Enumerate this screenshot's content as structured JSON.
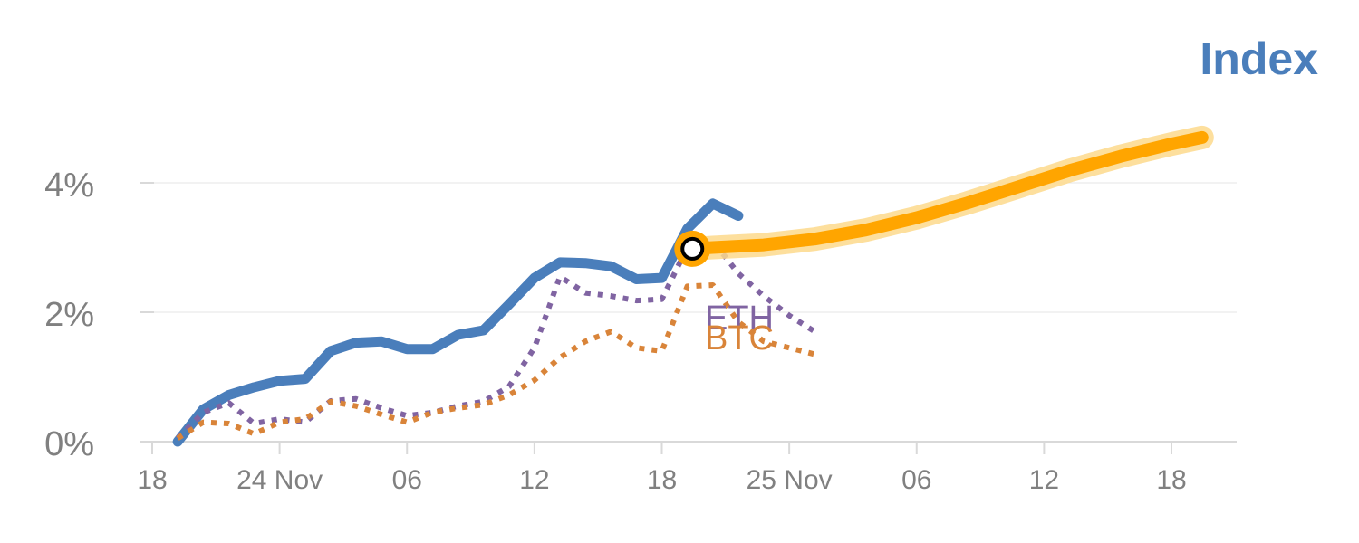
{
  "chart_data": {
    "type": "line",
    "title": "Index",
    "colors": {
      "index": "#4a7ebb",
      "forecast": "#ffa500",
      "forecast_glow": "#fdd98c",
      "eth": "#8064a2",
      "btc": "#d98439",
      "grid": "#e6e6e6",
      "axis": "#d9d9d9",
      "tick_text": "#808080",
      "marker_ring": "#ffa500",
      "marker_fill": "#ffffff",
      "marker_stroke": "#000000"
    },
    "y_axis": {
      "ticks": [
        0,
        2,
        4
      ],
      "tick_labels": [
        "0%",
        "2%",
        "4%"
      ],
      "ylim": [
        0,
        4
      ],
      "grid": true
    },
    "x_axis": {
      "xlim": [
        0,
        43
      ],
      "ticks": [
        0,
        5,
        10,
        15,
        20,
        25,
        30,
        35,
        40
      ],
      "tick_labels": [
        "18",
        "24 Nov",
        "06",
        "12",
        "18",
        "25 Nov",
        "06",
        "12",
        "18"
      ]
    },
    "series": [
      {
        "name": "Index",
        "role": "index",
        "style": "solid",
        "x": [
          1,
          2,
          3,
          4,
          5,
          6,
          7,
          8,
          9,
          10,
          11,
          12,
          13,
          14,
          15,
          16,
          17,
          18,
          19,
          20,
          21,
          22,
          23
        ],
        "y": [
          0.0,
          0.5,
          0.72,
          0.84,
          0.94,
          0.97,
          1.4,
          1.53,
          1.55,
          1.43,
          1.43,
          1.65,
          1.72,
          2.12,
          2.53,
          2.77,
          2.76,
          2.71,
          2.51,
          2.53,
          3.29,
          3.68,
          3.49
        ]
      },
      {
        "name": "ETH",
        "role": "eth",
        "style": "dotted",
        "x": [
          1,
          2,
          3,
          4,
          5,
          6,
          7,
          8,
          9,
          10,
          11,
          12,
          13,
          14,
          15,
          16,
          17,
          18,
          19,
          20,
          21,
          22,
          23,
          24,
          25,
          26
        ],
        "y": [
          0.05,
          0.45,
          0.6,
          0.28,
          0.35,
          0.3,
          0.63,
          0.66,
          0.52,
          0.4,
          0.45,
          0.55,
          0.62,
          0.85,
          1.45,
          2.55,
          2.3,
          2.25,
          2.18,
          2.2,
          3.0,
          3.1,
          2.6,
          2.25,
          1.95,
          1.7
        ]
      },
      {
        "name": "BTC",
        "role": "btc",
        "style": "dotted",
        "x": [
          1,
          2,
          3,
          4,
          5,
          6,
          7,
          8,
          9,
          10,
          11,
          12,
          13,
          14,
          15,
          16,
          17,
          18,
          19,
          20,
          21,
          22,
          23,
          24,
          25,
          26
        ],
        "y": [
          0.05,
          0.3,
          0.28,
          0.12,
          0.3,
          0.35,
          0.62,
          0.55,
          0.42,
          0.3,
          0.45,
          0.52,
          0.57,
          0.72,
          0.95,
          1.3,
          1.55,
          1.7,
          1.45,
          1.4,
          2.4,
          2.42,
          1.85,
          1.55,
          1.45,
          1.35
        ]
      }
    ],
    "forecast": {
      "x": [
        21.2,
        22,
        24,
        26,
        28,
        30,
        32,
        34,
        36,
        38,
        40,
        41.2
      ],
      "y": [
        2.98,
        3.0,
        3.04,
        3.13,
        3.27,
        3.46,
        3.69,
        3.94,
        4.19,
        4.41,
        4.6,
        4.7
      ]
    },
    "marker": {
      "x": 21.2,
      "y": 2.98
    }
  }
}
